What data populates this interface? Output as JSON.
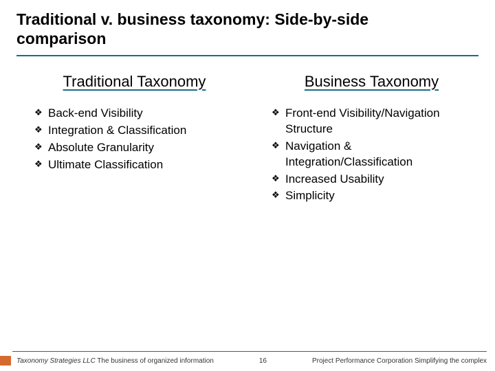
{
  "title": {
    "line1": "Traditional v. business taxonomy: Side-by-side",
    "line2": "comparison"
  },
  "colors": {
    "accent": "#1c6a87",
    "mark": "#d46a2e",
    "text": "#000000",
    "background": "#ffffff"
  },
  "left": {
    "heading": "Traditional Taxonomy",
    "items": [
      "Back-end Visibility",
      "Integration & Classification",
      "Absolute Granularity",
      "Ultimate Classification"
    ]
  },
  "right": {
    "heading": "Business Taxonomy",
    "items": [
      "Front-end Visibility/Navigation Structure",
      "Navigation & Integration/Classification",
      "Increased Usability",
      "Simplicity"
    ]
  },
  "footer": {
    "left_italic": "Taxonomy Strategies LLC",
    "left_plain": "  The business of organized information",
    "page": "16",
    "right": "Project Performance Corporation  Simplifying the complex"
  }
}
